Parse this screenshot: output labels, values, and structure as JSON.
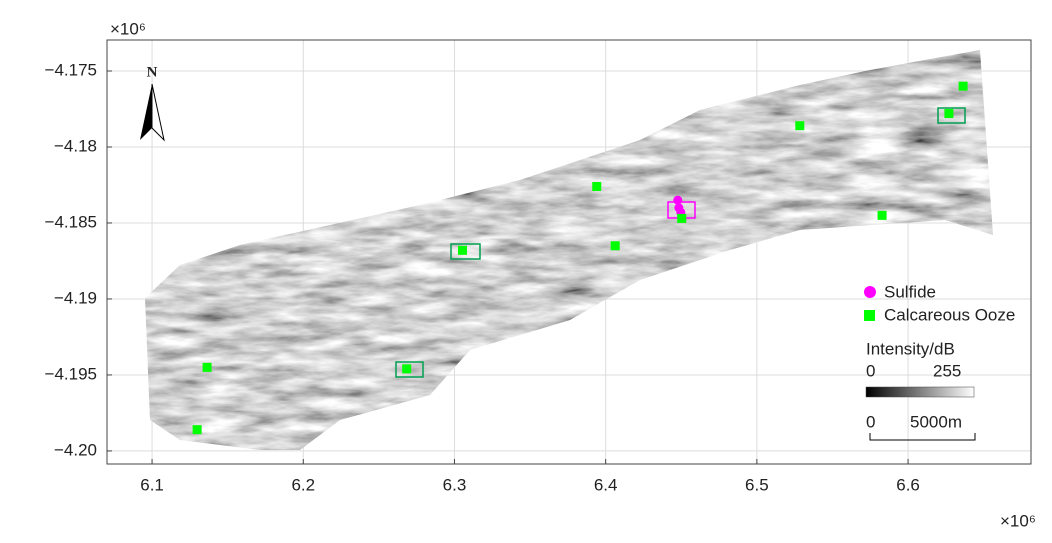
{
  "chart_data": {
    "type": "scatter",
    "x_multiplier": "×10⁶",
    "y_multiplier": "×10⁶",
    "series": [
      {
        "name": "Sulfide",
        "color": "#ff00ff",
        "marker": "circle",
        "x": [
          6.4477,
          6.4484,
          6.4497
        ],
        "values": [
          -4.1835,
          -4.184,
          -4.1843
        ]
      },
      {
        "name": "Calcareous Ooze",
        "color": "#00ff00",
        "marker": "square",
        "x": [
          6.6364,
          6.627,
          6.5284,
          6.3941,
          6.4503,
          6.4063,
          6.5828,
          6.3053,
          6.2684,
          6.1364,
          6.1298
        ],
        "values": [
          -4.176,
          -4.1778,
          -4.1786,
          -4.1826,
          -4.1847,
          -4.1865,
          -4.1845,
          -4.1868,
          -4.1946,
          -4.1945,
          -4.1986
        ]
      }
    ],
    "xlim": [
      6.0702,
      6.6813
    ],
    "ylim": [
      -4.20086,
      -4.17296
    ],
    "xticks": [
      6.1,
      6.2,
      6.3,
      6.4,
      6.5,
      6.6
    ],
    "yticks": [
      {
        "value": -4.175,
        "label": "−4.175"
      },
      {
        "value": -4.18,
        "label": "−4.18"
      },
      {
        "value": -4.185,
        "label": "−4.185"
      },
      {
        "value": -4.19,
        "label": "−4.19"
      },
      {
        "value": -4.195,
        "label": "−4.195"
      },
      {
        "value": -4.2,
        "label": "−4.20"
      }
    ],
    "grid": true,
    "north": "N",
    "colorbar": {
      "label": "Intensity/dB",
      "min": 0,
      "max": 255
    },
    "scalebar": {
      "start": "0",
      "end": "5000m"
    }
  }
}
